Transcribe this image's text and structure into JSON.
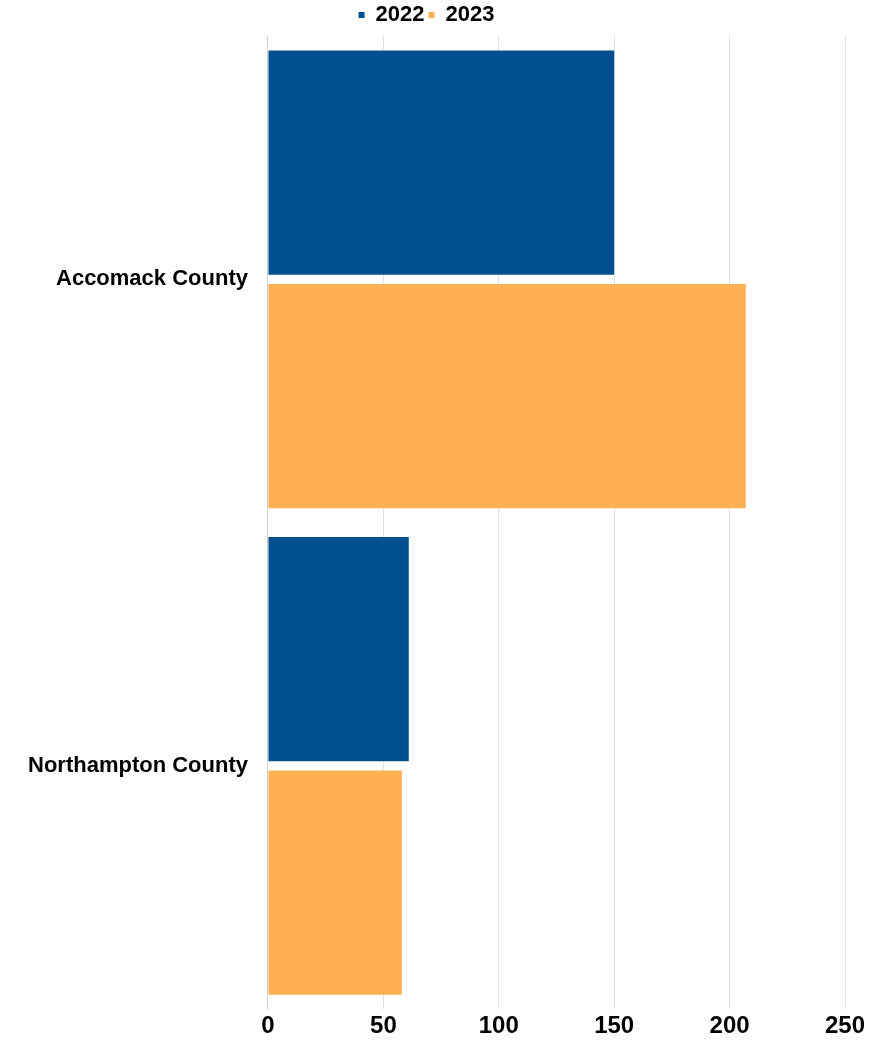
{
  "chart_data": {
    "type": "bar",
    "orientation": "horizontal",
    "categories": [
      "Accomack County",
      "Northampton County"
    ],
    "series": [
      {
        "name": "2022",
        "color": "#00508f",
        "values": [
          150,
          61
        ]
      },
      {
        "name": "2023",
        "color": "#fdb152",
        "values": [
          207,
          58
        ]
      }
    ],
    "xlim": [
      0,
      250
    ],
    "xticks": [
      0,
      50,
      100,
      150,
      200,
      250
    ],
    "grid": "x",
    "legend": "top"
  }
}
